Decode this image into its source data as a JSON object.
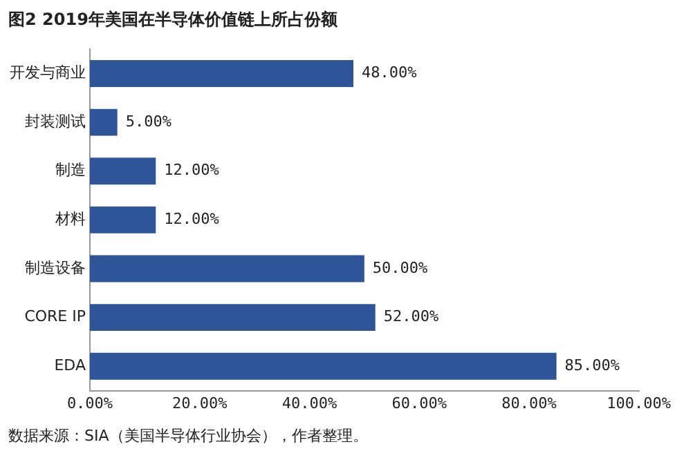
{
  "chart_data": {
    "type": "bar",
    "orientation": "horizontal",
    "title": "图2  2019年美国在半导体价值链上所占份额",
    "categories": [
      "开发与商业",
      "封装测试",
      "制造",
      "材料",
      "制造设备",
      "CORE IP",
      "EDA"
    ],
    "values": [
      48,
      5,
      12,
      12,
      50,
      52,
      85
    ],
    "value_labels": [
      "48.00%",
      "5.00%",
      "12.00%",
      "12.00%",
      "50.00%",
      "52.00%",
      "85.00%"
    ],
    "color": "#2e5597",
    "xlim": [
      0,
      100
    ],
    "xticks": [
      {
        "value": 0,
        "label": "0.00%"
      },
      {
        "value": 20,
        "label": "20.00%"
      },
      {
        "value": 40,
        "label": "40.00%"
      },
      {
        "value": 60,
        "label": "60.00%"
      },
      {
        "value": 80,
        "label": "80.00%"
      },
      {
        "value": 100,
        "label": "100.00%"
      }
    ],
    "grid": false,
    "legend": false,
    "annotations": [
      "数据来源：SIA（美国半导体行业协会），作者整理。"
    ]
  }
}
